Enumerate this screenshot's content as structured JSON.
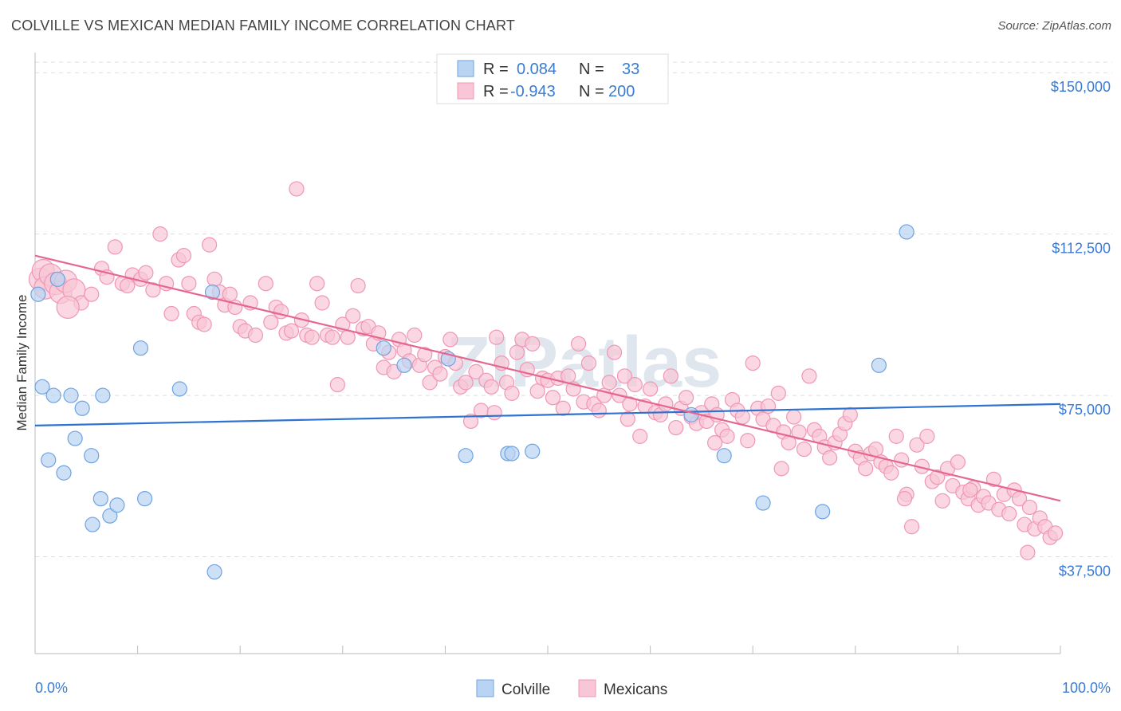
{
  "title": "COLVILLE VS MEXICAN MEDIAN FAMILY INCOME CORRELATION CHART",
  "source": "Source: ZipAtlas.com",
  "chart_data": {
    "type": "scatter",
    "ylabel": "Median Family Income",
    "xlim": [
      0,
      100
    ],
    "ylim": [
      15000,
      153000
    ],
    "y_ticks": [
      {
        "value": 37500,
        "label": "$37,500"
      },
      {
        "value": 75000,
        "label": "$75,000"
      },
      {
        "value": 112500,
        "label": "$112,500"
      },
      {
        "value": 150000,
        "label": "$150,000"
      }
    ],
    "x_tick_labels": {
      "min": "0.0%",
      "max": "100.0%"
    },
    "legend": {
      "placement": "top-center",
      "rows": [
        {
          "r_label": "R =",
          "r_value": "0.084",
          "n_label": "N =",
          "n_value": "33"
        },
        {
          "r_label": "R =",
          "r_value": "-0.943",
          "n_label": "N =",
          "n_value": "200"
        }
      ]
    },
    "series": [
      {
        "name": "Colville",
        "color": "#6fa3e0",
        "fill": "#b9d3f2",
        "trend": {
          "x": [
            0,
            100
          ],
          "y": [
            68000,
            73000
          ],
          "color": "#2f73d0"
        },
        "points": [
          {
            "x": 0.3,
            "y": 98500
          },
          {
            "x": 0.7,
            "y": 77000
          },
          {
            "x": 1.3,
            "y": 60000
          },
          {
            "x": 1.8,
            "y": 75000
          },
          {
            "x": 2.2,
            "y": 102000
          },
          {
            "x": 2.8,
            "y": 57000
          },
          {
            "x": 3.5,
            "y": 75000
          },
          {
            "x": 3.9,
            "y": 65000
          },
          {
            "x": 4.6,
            "y": 72000
          },
          {
            "x": 5.5,
            "y": 61000
          },
          {
            "x": 5.6,
            "y": 45000
          },
          {
            "x": 6.4,
            "y": 51000
          },
          {
            "x": 6.6,
            "y": 75000
          },
          {
            "x": 7.3,
            "y": 47000
          },
          {
            "x": 8.0,
            "y": 49500
          },
          {
            "x": 10.3,
            "y": 86000
          },
          {
            "x": 10.7,
            "y": 51000
          },
          {
            "x": 14.1,
            "y": 76500
          },
          {
            "x": 17.3,
            "y": 99000
          },
          {
            "x": 17.5,
            "y": 34000
          },
          {
            "x": 34.0,
            "y": 86000
          },
          {
            "x": 36.0,
            "y": 82000
          },
          {
            "x": 40.3,
            "y": 83500
          },
          {
            "x": 42.0,
            "y": 61000
          },
          {
            "x": 46.1,
            "y": 61500
          },
          {
            "x": 46.5,
            "y": 61500
          },
          {
            "x": 48.5,
            "y": 62000
          },
          {
            "x": 64.0,
            "y": 70500
          },
          {
            "x": 67.2,
            "y": 61000
          },
          {
            "x": 71.0,
            "y": 50000
          },
          {
            "x": 76.8,
            "y": 48000
          },
          {
            "x": 82.3,
            "y": 82000
          },
          {
            "x": 85.0,
            "y": 113000
          }
        ]
      },
      {
        "name": "Mexicans",
        "color": "#ef97b4",
        "fill": "#f8c6d6",
        "trend": {
          "x": [
            0,
            100
          ],
          "y": [
            107500,
            50500
          ],
          "color": "#e5678f"
        },
        "points": []
      }
    ]
  },
  "watermark": "ZIPatlas",
  "bottom_legend": [
    "Colville",
    "Mexicans"
  ]
}
